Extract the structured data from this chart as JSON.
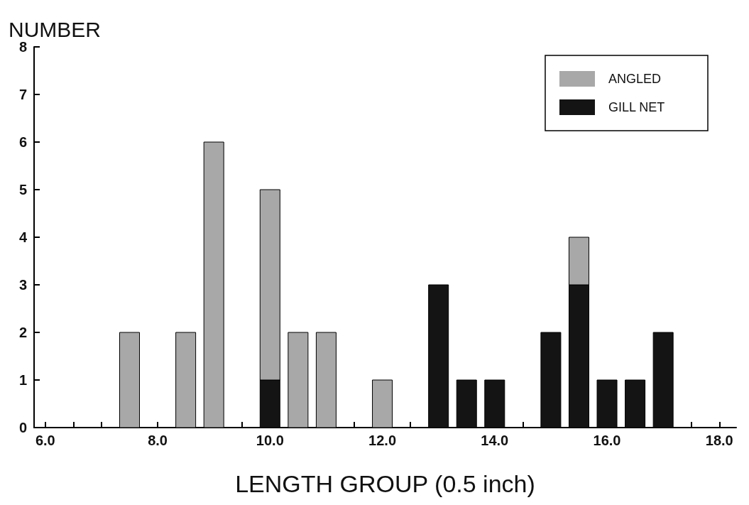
{
  "chart_data": {
    "type": "bar",
    "stacked": true,
    "ylabel": "NUMBER",
    "xlabel": "LENGTH GROUP (0.5 inch)",
    "x": [
      7.5,
      8.5,
      9.0,
      10.0,
      10.5,
      11.0,
      12.0,
      13.0,
      13.5,
      14.0,
      15.0,
      15.5,
      16.0,
      16.5,
      17.0
    ],
    "series": [
      {
        "name": "GILL NET",
        "color": "#141414",
        "values": [
          null,
          null,
          null,
          1,
          null,
          null,
          null,
          3,
          1,
          1,
          2,
          3,
          1,
          1,
          2
        ]
      },
      {
        "name": "ANGLED",
        "color": "#a8a8a8",
        "values": [
          2,
          2,
          6,
          4,
          2,
          2,
          1,
          null,
          null,
          null,
          null,
          1,
          null,
          null,
          null
        ]
      }
    ],
    "xlim": [
      5.8,
      18.3
    ],
    "xticks": [
      {
        "value": 6,
        "label": "6.0"
      },
      {
        "value": 6.5,
        "label": null
      },
      {
        "value": 7,
        "label": null
      },
      {
        "value": 7.5,
        "label": null
      },
      {
        "value": 8,
        "label": "8.0"
      },
      {
        "value": 8.5,
        "label": null
      },
      {
        "value": 9,
        "label": null
      },
      {
        "value": 9.5,
        "label": null
      },
      {
        "value": 10,
        "label": "10.0"
      },
      {
        "value": 10.5,
        "label": null
      },
      {
        "value": 11,
        "label": null
      },
      {
        "value": 11.5,
        "label": null
      },
      {
        "value": 12,
        "label": "12.0"
      },
      {
        "value": 12.5,
        "label": null
      },
      {
        "value": 13,
        "label": null
      },
      {
        "value": 13.5,
        "label": null
      },
      {
        "value": 14,
        "label": "14.0"
      },
      {
        "value": 14.5,
        "label": null
      },
      {
        "value": 15,
        "label": null
      },
      {
        "value": 15.5,
        "label": null
      },
      {
        "value": 16,
        "label": "16.0"
      },
      {
        "value": 16.5,
        "label": null
      },
      {
        "value": 17,
        "label": null
      },
      {
        "value": 17.5,
        "label": null
      },
      {
        "value": 18,
        "label": "18.0"
      }
    ],
    "ylim": [
      0,
      8
    ],
    "yticks": [
      0,
      1,
      2,
      3,
      4,
      5,
      6,
      7,
      8
    ],
    "grid": false,
    "legend": "top right"
  }
}
